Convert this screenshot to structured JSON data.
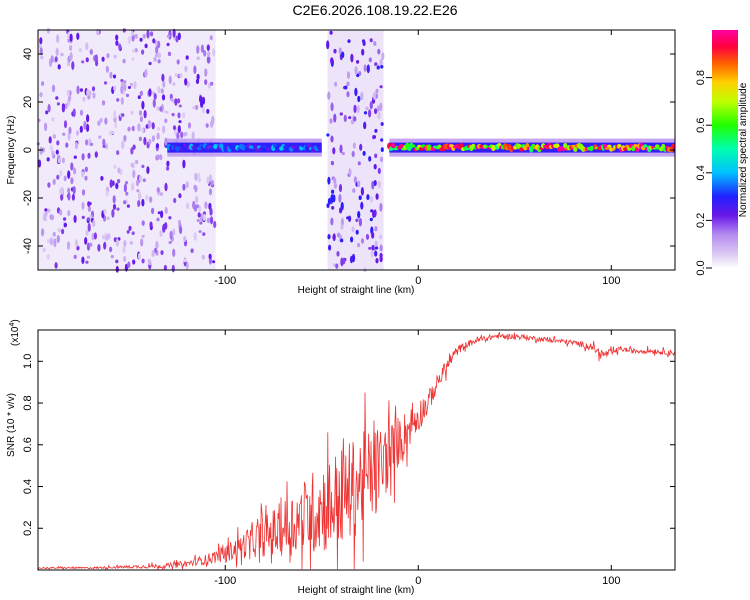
{
  "title": "C2E6.2026.108.19.22.E26",
  "colors": {
    "snr_line": "#ee3333",
    "frame": "#000000"
  },
  "chart_data": [
    {
      "type": "heatmap",
      "title": "C2E6.2026.108.19.22.E26",
      "xlabel": "Height of straight line (km)",
      "ylabel": "Frequency (Hz)",
      "xlim": [
        -197,
        133
      ],
      "ylim": [
        -50,
        50
      ],
      "x_ticks": [
        -100,
        0,
        100
      ],
      "x_tick_labels": [
        "-100",
        "0",
        "100"
      ],
      "y_ticks": [
        -40,
        -20,
        0,
        20,
        40
      ],
      "y_tick_labels": [
        "-40",
        "-20",
        "0",
        "20",
        "40"
      ],
      "colorbar": {
        "label": "Normalized spectral amplitude",
        "range": [
          0,
          1
        ],
        "ticks": [
          0.0,
          0.2,
          0.4,
          0.6,
          0.8
        ],
        "tick_labels": [
          "0.0",
          "0.2",
          "0.4",
          "0.6",
          "0.8"
        ]
      },
      "features": [
        {
          "name": "noise-band-left",
          "x_range": [
            -197,
            -105
          ],
          "freq_range": [
            -50,
            50
          ],
          "amplitude": 0.12
        },
        {
          "name": "noise-band-mid",
          "x_range": [
            -47,
            -18
          ],
          "freq_range": [
            -50,
            50
          ],
          "amplitude": 0.15
        },
        {
          "name": "trace-noisy",
          "x_range": [
            -130,
            -50
          ],
          "center_freq": 1,
          "amplitude": 0.35
        },
        {
          "name": "trace-steady",
          "x_range": [
            -15,
            133
          ],
          "center_freq": 1,
          "amplitude": 0.85
        }
      ]
    },
    {
      "type": "line",
      "xlabel": "Height of straight line (km)",
      "ylabel": "SNR (10 * v/v)",
      "y_multiplier": "(x10",
      "y_multiplier_exp": "4",
      "y_multiplier_end": ")",
      "xlim": [
        -197,
        133
      ],
      "ylim": [
        0,
        1.15
      ],
      "x_ticks": [
        -100,
        0,
        100
      ],
      "x_tick_labels": [
        "-100",
        "0",
        "100"
      ],
      "y_ticks": [
        0.2,
        0.4,
        0.6,
        0.8,
        1.0
      ],
      "y_tick_labels": [
        "0.2",
        "0.4",
        "0.6",
        "0.8",
        "1.0"
      ],
      "series": [
        {
          "name": "SNR",
          "x": [
            -197,
            -170,
            -150,
            -130,
            -120,
            -110,
            -100,
            -90,
            -80,
            -70,
            -60,
            -50,
            -40,
            -35,
            -30,
            -25,
            -20,
            -15,
            -10,
            -5,
            0,
            5,
            10,
            15,
            20,
            25,
            30,
            40,
            50,
            60,
            70,
            80,
            90,
            95,
            100,
            105,
            110,
            120,
            133
          ],
          "values": [
            0.01,
            0.01,
            0.015,
            0.02,
            0.03,
            0.05,
            0.08,
            0.12,
            0.16,
            0.2,
            0.25,
            0.3,
            0.35,
            0.38,
            0.42,
            0.45,
            0.5,
            0.55,
            0.62,
            0.68,
            0.74,
            0.8,
            0.9,
            0.98,
            1.05,
            1.08,
            1.1,
            1.12,
            1.12,
            1.11,
            1.1,
            1.09,
            1.07,
            1.03,
            1.04,
            1.06,
            1.05,
            1.05,
            1.04
          ],
          "noise_envelope": [
            0.005,
            0.005,
            0.008,
            0.015,
            0.02,
            0.03,
            0.05,
            0.08,
            0.12,
            0.17,
            0.22,
            0.28,
            0.3,
            0.3,
            0.3,
            0.28,
            0.25,
            0.2,
            0.15,
            0.12,
            0.1,
            0.07,
            0.05,
            0.04,
            0.03,
            0.02,
            0.02,
            0.015,
            0.015,
            0.015,
            0.015,
            0.015,
            0.02,
            0.03,
            0.02,
            0.015,
            0.015,
            0.015,
            0.015
          ]
        }
      ]
    }
  ]
}
